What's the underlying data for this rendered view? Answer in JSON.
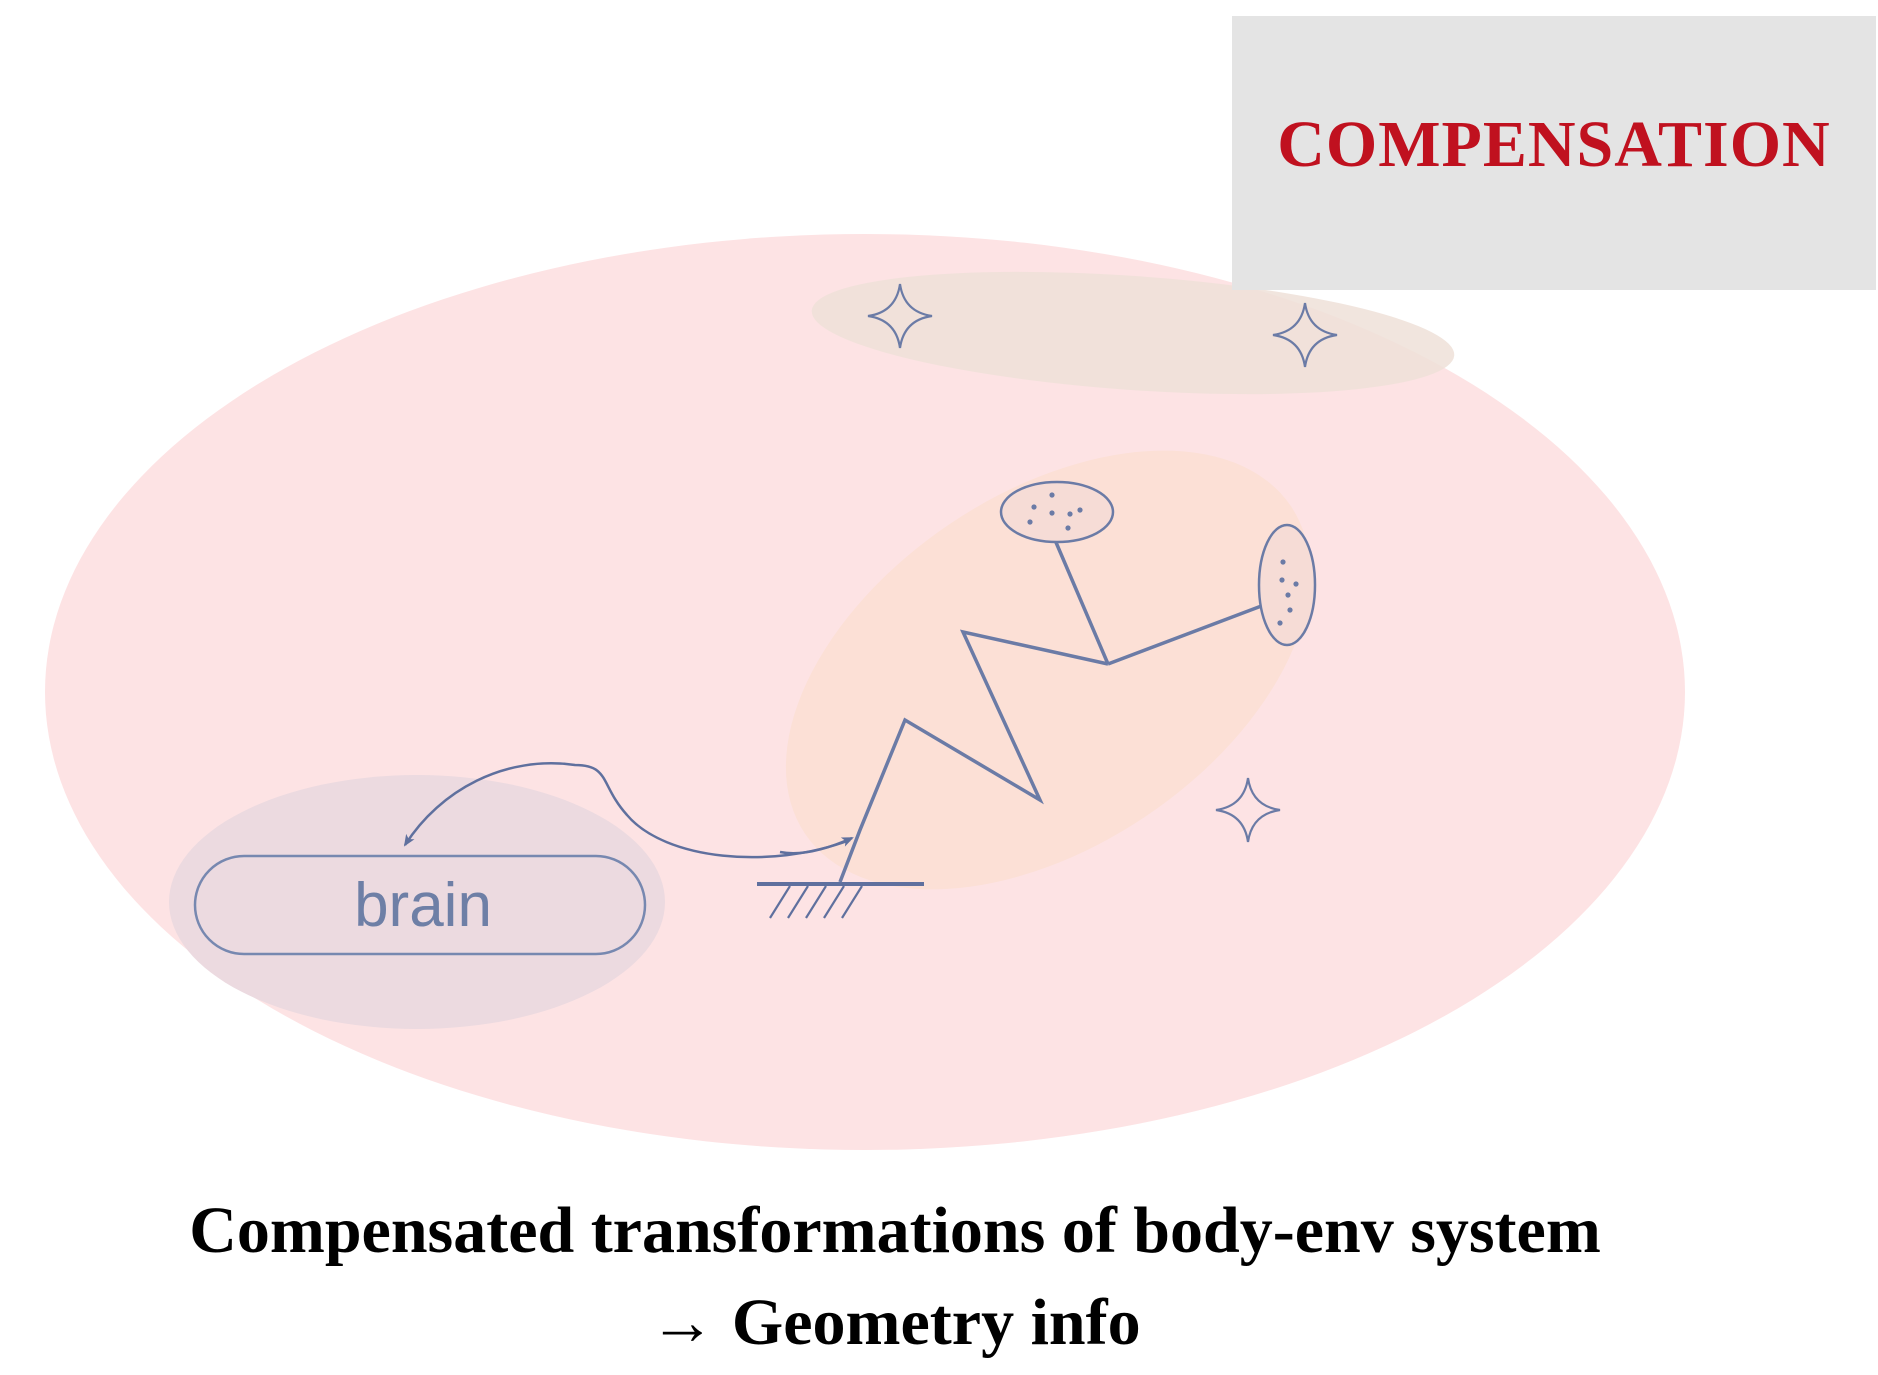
{
  "diagram": {
    "compensation_label": "COMPENSATION",
    "brain_label": "brain",
    "caption_line1": "Compensated transformations of body-env system",
    "caption_line2": "→ Geometry info",
    "colors": {
      "outer_region": "#fde3e4",
      "body_region": "#fce0d6",
      "brain_region": "#ecdae0",
      "stars_region": "#efe0d8",
      "stroke": "#6b7ba6",
      "label_box": "#e4e4e4",
      "label_text": "#c0111f"
    }
  }
}
